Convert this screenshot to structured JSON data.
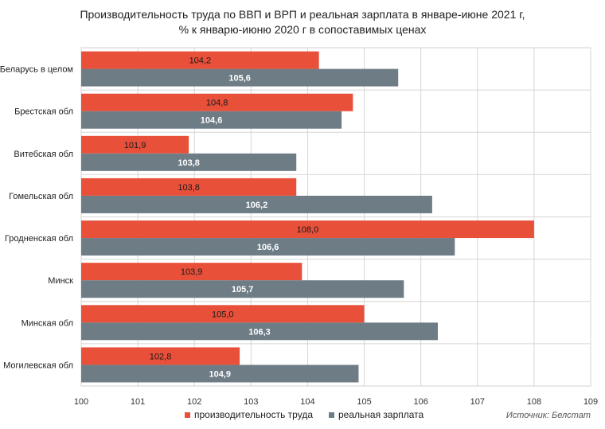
{
  "chart_data": {
    "type": "bar",
    "orientation": "horizontal",
    "title_line1": "Производительность труда по ВВП и ВРП и реальная зарплата в январе-июне 2021 г,",
    "title_line2": "% к январю-июню 2020 г в сопоставимых ценах",
    "categories": [
      "Беларусь в целом",
      "Брестская обл",
      "Витебская обл",
      "Гомельская обл",
      "Гродненская обл",
      "Минск",
      "Минская обл",
      "Могилевская обл"
    ],
    "series": [
      {
        "name": "производительность труда",
        "color": "#e8503a",
        "values": [
          104.2,
          104.8,
          101.9,
          103.8,
          108.0,
          103.9,
          105.0,
          102.8
        ],
        "labels": [
          "104,2",
          "104,8",
          "101,9",
          "103,8",
          "108,0",
          "103,9",
          "105,0",
          "102,8"
        ]
      },
      {
        "name": "реальная зарплата",
        "color": "#6e7c86",
        "values": [
          105.6,
          104.6,
          103.8,
          106.2,
          106.6,
          105.7,
          106.3,
          104.9
        ],
        "labels": [
          "105,6",
          "104,6",
          "103,8",
          "106,2",
          "106,6",
          "105,7",
          "106,3",
          "104,9"
        ]
      }
    ],
    "xlim": [
      100,
      109
    ],
    "xticks": [
      "100",
      "101",
      "102",
      "103",
      "104",
      "105",
      "106",
      "107",
      "108",
      "109"
    ],
    "grid": "vertical",
    "legend_position": "bottom"
  },
  "source": "Источник: Белстат"
}
